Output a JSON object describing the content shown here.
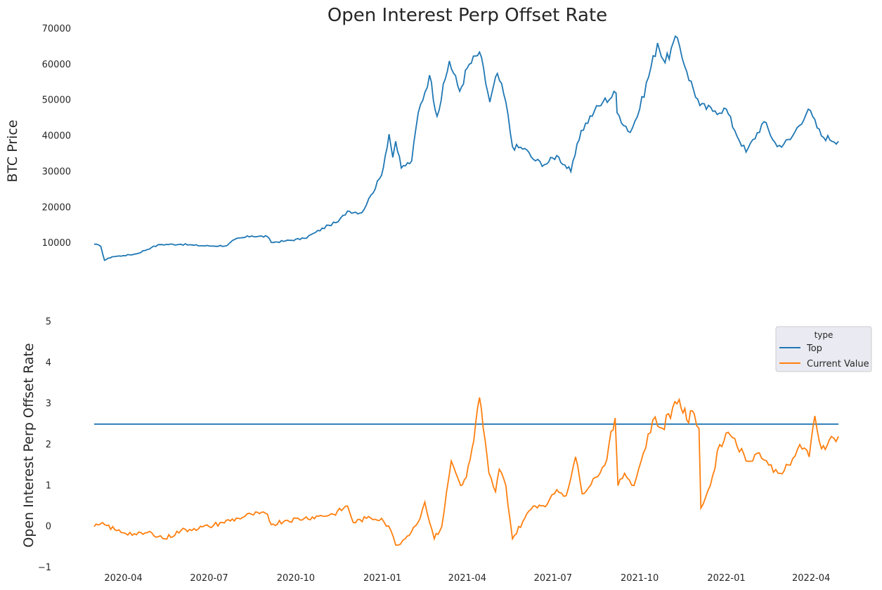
{
  "title": "Open Interest Perp Offset Rate",
  "colors": {
    "price": "#1f77b4",
    "top": "#1f77b4",
    "current": "#ff7f0e",
    "legend_bg": "#eaeaf2",
    "text": "#262626"
  },
  "chart_data": [
    {
      "type": "line",
      "ylabel": "BTC  Price",
      "ylim": [
        0,
        70000
      ],
      "yticks": [
        "10000",
        "20000",
        "30000",
        "40000",
        "50000",
        "60000",
        "70000"
      ],
      "xlabels": [
        "2020-04",
        "2020-07",
        "2020-10",
        "2021-01",
        "2021-04",
        "2021-07",
        "2021-10",
        "2022-01",
        "2022-04"
      ],
      "grid": false,
      "series": [
        {
          "color": "#1f77b4",
          "points": [
            [
              "2020-03-01",
              9700
            ],
            [
              "2020-03-08",
              9100
            ],
            [
              "2020-03-12",
              5200
            ],
            [
              "2020-03-20",
              6200
            ],
            [
              "2020-04-01",
              6500
            ],
            [
              "2020-04-15",
              7000
            ],
            [
              "2020-05-01",
              8800
            ],
            [
              "2020-05-10",
              9600
            ],
            [
              "2020-06-01",
              9700
            ],
            [
              "2020-06-15",
              9400
            ],
            [
              "2020-07-01",
              9200
            ],
            [
              "2020-07-20",
              9300
            ],
            [
              "2020-07-28",
              11000
            ],
            [
              "2020-08-15",
              12000
            ],
            [
              "2020-09-01",
              11800
            ],
            [
              "2020-09-05",
              10200
            ],
            [
              "2020-09-20",
              10600
            ],
            [
              "2020-10-10",
              11300
            ],
            [
              "2020-10-22",
              13000
            ],
            [
              "2020-11-05",
              15000
            ],
            [
              "2020-11-15",
              16000
            ],
            [
              "2020-11-25",
              19000
            ],
            [
              "2020-12-10",
              18500
            ],
            [
              "2020-12-20",
              23500
            ],
            [
              "2020-12-31",
              29000
            ],
            [
              "2021-01-08",
              40500
            ],
            [
              "2021-01-12",
              34000
            ],
            [
              "2021-01-15",
              38500
            ],
            [
              "2021-01-21",
              31000
            ],
            [
              "2021-02-01",
              33000
            ],
            [
              "2021-02-08",
              46500
            ],
            [
              "2021-02-20",
              57000
            ],
            [
              "2021-02-28",
              45500
            ],
            [
              "2021-03-13",
              61000
            ],
            [
              "2021-03-24",
              52500
            ],
            [
              "2021-04-01",
              59000
            ],
            [
              "2021-04-14",
              63500
            ],
            [
              "2021-04-25",
              49500
            ],
            [
              "2021-05-03",
              57500
            ],
            [
              "2021-05-12",
              49500
            ],
            [
              "2021-05-19",
              37000
            ],
            [
              "2021-06-01",
              36500
            ],
            [
              "2021-06-10",
              33500
            ],
            [
              "2021-06-22",
              32000
            ],
            [
              "2021-07-05",
              34500
            ],
            [
              "2021-07-20",
              30000
            ],
            [
              "2021-07-31",
              41500
            ],
            [
              "2021-08-14",
              47000
            ],
            [
              "2021-08-23",
              49500
            ],
            [
              "2021-09-06",
              52000
            ],
            [
              "2021-09-07",
              46500
            ],
            [
              "2021-09-21",
              41000
            ],
            [
              "2021-10-01",
              47500
            ],
            [
              "2021-10-20",
              66000
            ],
            [
              "2021-10-28",
              60500
            ],
            [
              "2021-11-10",
              67500
            ],
            [
              "2021-11-20",
              58000
            ],
            [
              "2021-12-04",
              48500
            ],
            [
              "2021-12-20",
              47000
            ],
            [
              "2022-01-01",
              47500
            ],
            [
              "2022-01-10",
              41500
            ],
            [
              "2022-01-22",
              35500
            ],
            [
              "2022-02-10",
              44000
            ],
            [
              "2022-02-24",
              37000
            ],
            [
              "2022-03-10",
              39000
            ],
            [
              "2022-03-29",
              47500
            ],
            [
              "2022-04-12",
              40000
            ],
            [
              "2022-04-30",
              38500
            ]
          ]
        }
      ]
    },
    {
      "type": "line",
      "ylabel": "Open Interest Perp Offset Rate",
      "ylim": [
        -1,
        5
      ],
      "yticks": [
        "−1",
        "0",
        "1",
        "2",
        "3",
        "4",
        "5"
      ],
      "xticks": [
        "2020-04",
        "2020-07",
        "2020-10",
        "2021-01",
        "2021-04",
        "2021-07",
        "2021-10",
        "2022-01",
        "2022-04"
      ],
      "grid": false,
      "legend": {
        "title": "type",
        "placement": "upper right",
        "entries": [
          "Top",
          "Current Value"
        ]
      },
      "series": [
        {
          "name": "Top",
          "color": "#1f77b4",
          "points": [
            [
              "2020-03-01",
              2.5
            ],
            [
              "2022-04-30",
              2.5
            ]
          ]
        },
        {
          "name": "Current Value",
          "color": "#ff7f0e",
          "points": [
            [
              "2020-03-01",
              0.0
            ],
            [
              "2020-03-12",
              0.05
            ],
            [
              "2020-03-25",
              -0.1
            ],
            [
              "2020-04-15",
              -0.2
            ],
            [
              "2020-05-01",
              -0.15
            ],
            [
              "2020-05-15",
              -0.3
            ],
            [
              "2020-06-01",
              -0.1
            ],
            [
              "2020-06-15",
              -0.05
            ],
            [
              "2020-07-01",
              0.0
            ],
            [
              "2020-07-15",
              0.1
            ],
            [
              "2020-08-01",
              0.2
            ],
            [
              "2020-08-15",
              0.3
            ],
            [
              "2020-09-01",
              0.3
            ],
            [
              "2020-09-05",
              0.05
            ],
            [
              "2020-09-20",
              0.15
            ],
            [
              "2020-10-10",
              0.2
            ],
            [
              "2020-10-25",
              0.25
            ],
            [
              "2020-11-10",
              0.3
            ],
            [
              "2020-11-25",
              0.5
            ],
            [
              "2020-12-01",
              0.1
            ],
            [
              "2020-12-15",
              0.2
            ],
            [
              "2020-12-31",
              0.2
            ],
            [
              "2021-01-10",
              -0.1
            ],
            [
              "2021-01-15",
              -0.45
            ],
            [
              "2021-01-25",
              -0.3
            ],
            [
              "2021-02-10",
              0.2
            ],
            [
              "2021-02-15",
              0.6
            ],
            [
              "2021-02-25",
              -0.3
            ],
            [
              "2021-03-05",
              0.0
            ],
            [
              "2021-03-15",
              1.6
            ],
            [
              "2021-03-25",
              1.0
            ],
            [
              "2021-03-31",
              1.2
            ],
            [
              "2021-04-08",
              2.1
            ],
            [
              "2021-04-14",
              3.15
            ],
            [
              "2021-04-18",
              2.4
            ],
            [
              "2021-04-24",
              1.3
            ],
            [
              "2021-05-01",
              0.85
            ],
            [
              "2021-05-05",
              1.4
            ],
            [
              "2021-05-12",
              1.0
            ],
            [
              "2021-05-19",
              -0.3
            ],
            [
              "2021-06-01",
              0.2
            ],
            [
              "2021-06-10",
              0.5
            ],
            [
              "2021-06-25",
              0.55
            ],
            [
              "2021-07-05",
              0.9
            ],
            [
              "2021-07-15",
              0.75
            ],
            [
              "2021-07-25",
              1.7
            ],
            [
              "2021-08-01",
              0.8
            ],
            [
              "2021-08-15",
              1.2
            ],
            [
              "2021-08-25",
              1.5
            ],
            [
              "2021-09-05",
              2.65
            ],
            [
              "2021-09-08",
              1.0
            ],
            [
              "2021-09-15",
              1.3
            ],
            [
              "2021-09-25",
              1.0
            ],
            [
              "2021-10-05",
              1.8
            ],
            [
              "2021-10-15",
              2.6
            ],
            [
              "2021-10-25",
              2.4
            ],
            [
              "2021-11-05",
              2.9
            ],
            [
              "2021-11-12",
              3.1
            ],
            [
              "2021-11-20",
              2.6
            ],
            [
              "2021-11-28",
              2.75
            ],
            [
              "2021-12-03",
              2.4
            ],
            [
              "2021-12-05",
              0.45
            ],
            [
              "2021-12-15",
              1.0
            ],
            [
              "2021-12-25",
              2.0
            ],
            [
              "2022-01-03",
              2.3
            ],
            [
              "2022-01-10",
              2.15
            ],
            [
              "2022-01-22",
              1.6
            ],
            [
              "2022-02-05",
              1.8
            ],
            [
              "2022-02-15",
              1.5
            ],
            [
              "2022-02-25",
              1.3
            ],
            [
              "2022-03-10",
              1.5
            ],
            [
              "2022-03-20",
              2.0
            ],
            [
              "2022-03-30",
              1.7
            ],
            [
              "2022-04-05",
              2.7
            ],
            [
              "2022-04-12",
              1.9
            ],
            [
              "2022-04-20",
              2.1
            ],
            [
              "2022-04-30",
              2.2
            ]
          ]
        }
      ]
    }
  ]
}
